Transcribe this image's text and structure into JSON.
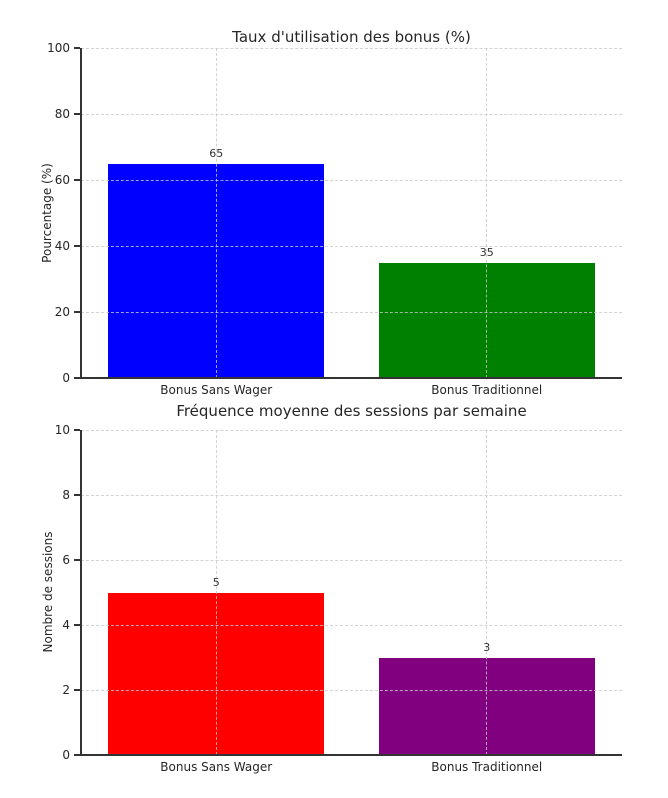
{
  "page": {
    "background": "#ffffff"
  },
  "style": {
    "grid_color": "#c8c8c8",
    "spine_color": "#333333",
    "text_color": "#262626"
  },
  "chart_data": [
    {
      "type": "bar",
      "title": "Taux d'utilisation des bonus (%)",
      "ylabel": "Pourcentage (%)",
      "xlabel": "",
      "categories": [
        "Bonus Sans Wager",
        "Bonus Traditionnel"
      ],
      "values": [
        65,
        35
      ],
      "bar_colors": [
        "#0000ff",
        "#008000"
      ],
      "ylim": [
        0,
        100
      ],
      "yticks": [
        0,
        20,
        40,
        60,
        80,
        100
      ],
      "grid": true,
      "grid_style": "dashed",
      "legend": "none"
    },
    {
      "type": "bar",
      "title": "Fréquence moyenne des sessions par semaine",
      "ylabel": "Nombre de sessions",
      "xlabel": "",
      "categories": [
        "Bonus Sans Wager",
        "Bonus Traditionnel"
      ],
      "values": [
        5,
        3
      ],
      "bar_colors": [
        "#ff0000",
        "#800080"
      ],
      "ylim": [
        0,
        10
      ],
      "yticks": [
        0,
        2,
        4,
        6,
        8,
        10
      ],
      "grid": true,
      "grid_style": "dashed",
      "legend": "none"
    }
  ]
}
